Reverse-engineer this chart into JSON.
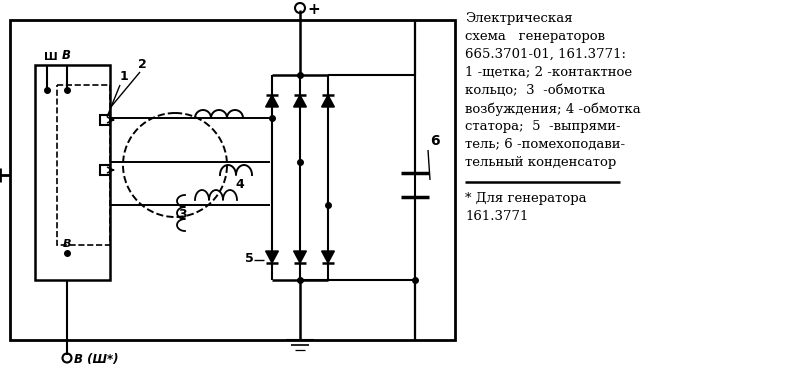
{
  "bg_color": "#ffffff",
  "lc": "#000000",
  "title_lines": [
    "Электрическая",
    "схема   генераторов",
    "665.3701-01, 161.3771:",
    "1 -щетка; 2 -контактное",
    "кольцо;  3  -обмотка",
    "возбуждения; 4 -обмотка",
    "статора;  5  -выпрями-",
    "тель; 6 -помехоподави-",
    "тельный конденсатор"
  ],
  "footnote_line1": "* Для генератора",
  "footnote_line2": "161.3771"
}
